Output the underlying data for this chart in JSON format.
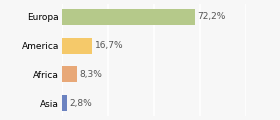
{
  "categories": [
    "Asia",
    "Africa",
    "America",
    "Europa"
  ],
  "values": [
    2.8,
    8.3,
    16.7,
    72.2
  ],
  "labels": [
    "2,8%",
    "8,3%",
    "16,7%",
    "72,2%"
  ],
  "colors": [
    "#6b82c0",
    "#e8a878",
    "#f5c96a",
    "#b5c98a"
  ],
  "background_color": "#f7f7f7",
  "xlim": [
    0,
    100
  ],
  "bar_height": 0.55,
  "label_fontsize": 6.5,
  "tick_fontsize": 6.5,
  "grid_color": "#ffffff",
  "grid_linewidth": 1.2
}
